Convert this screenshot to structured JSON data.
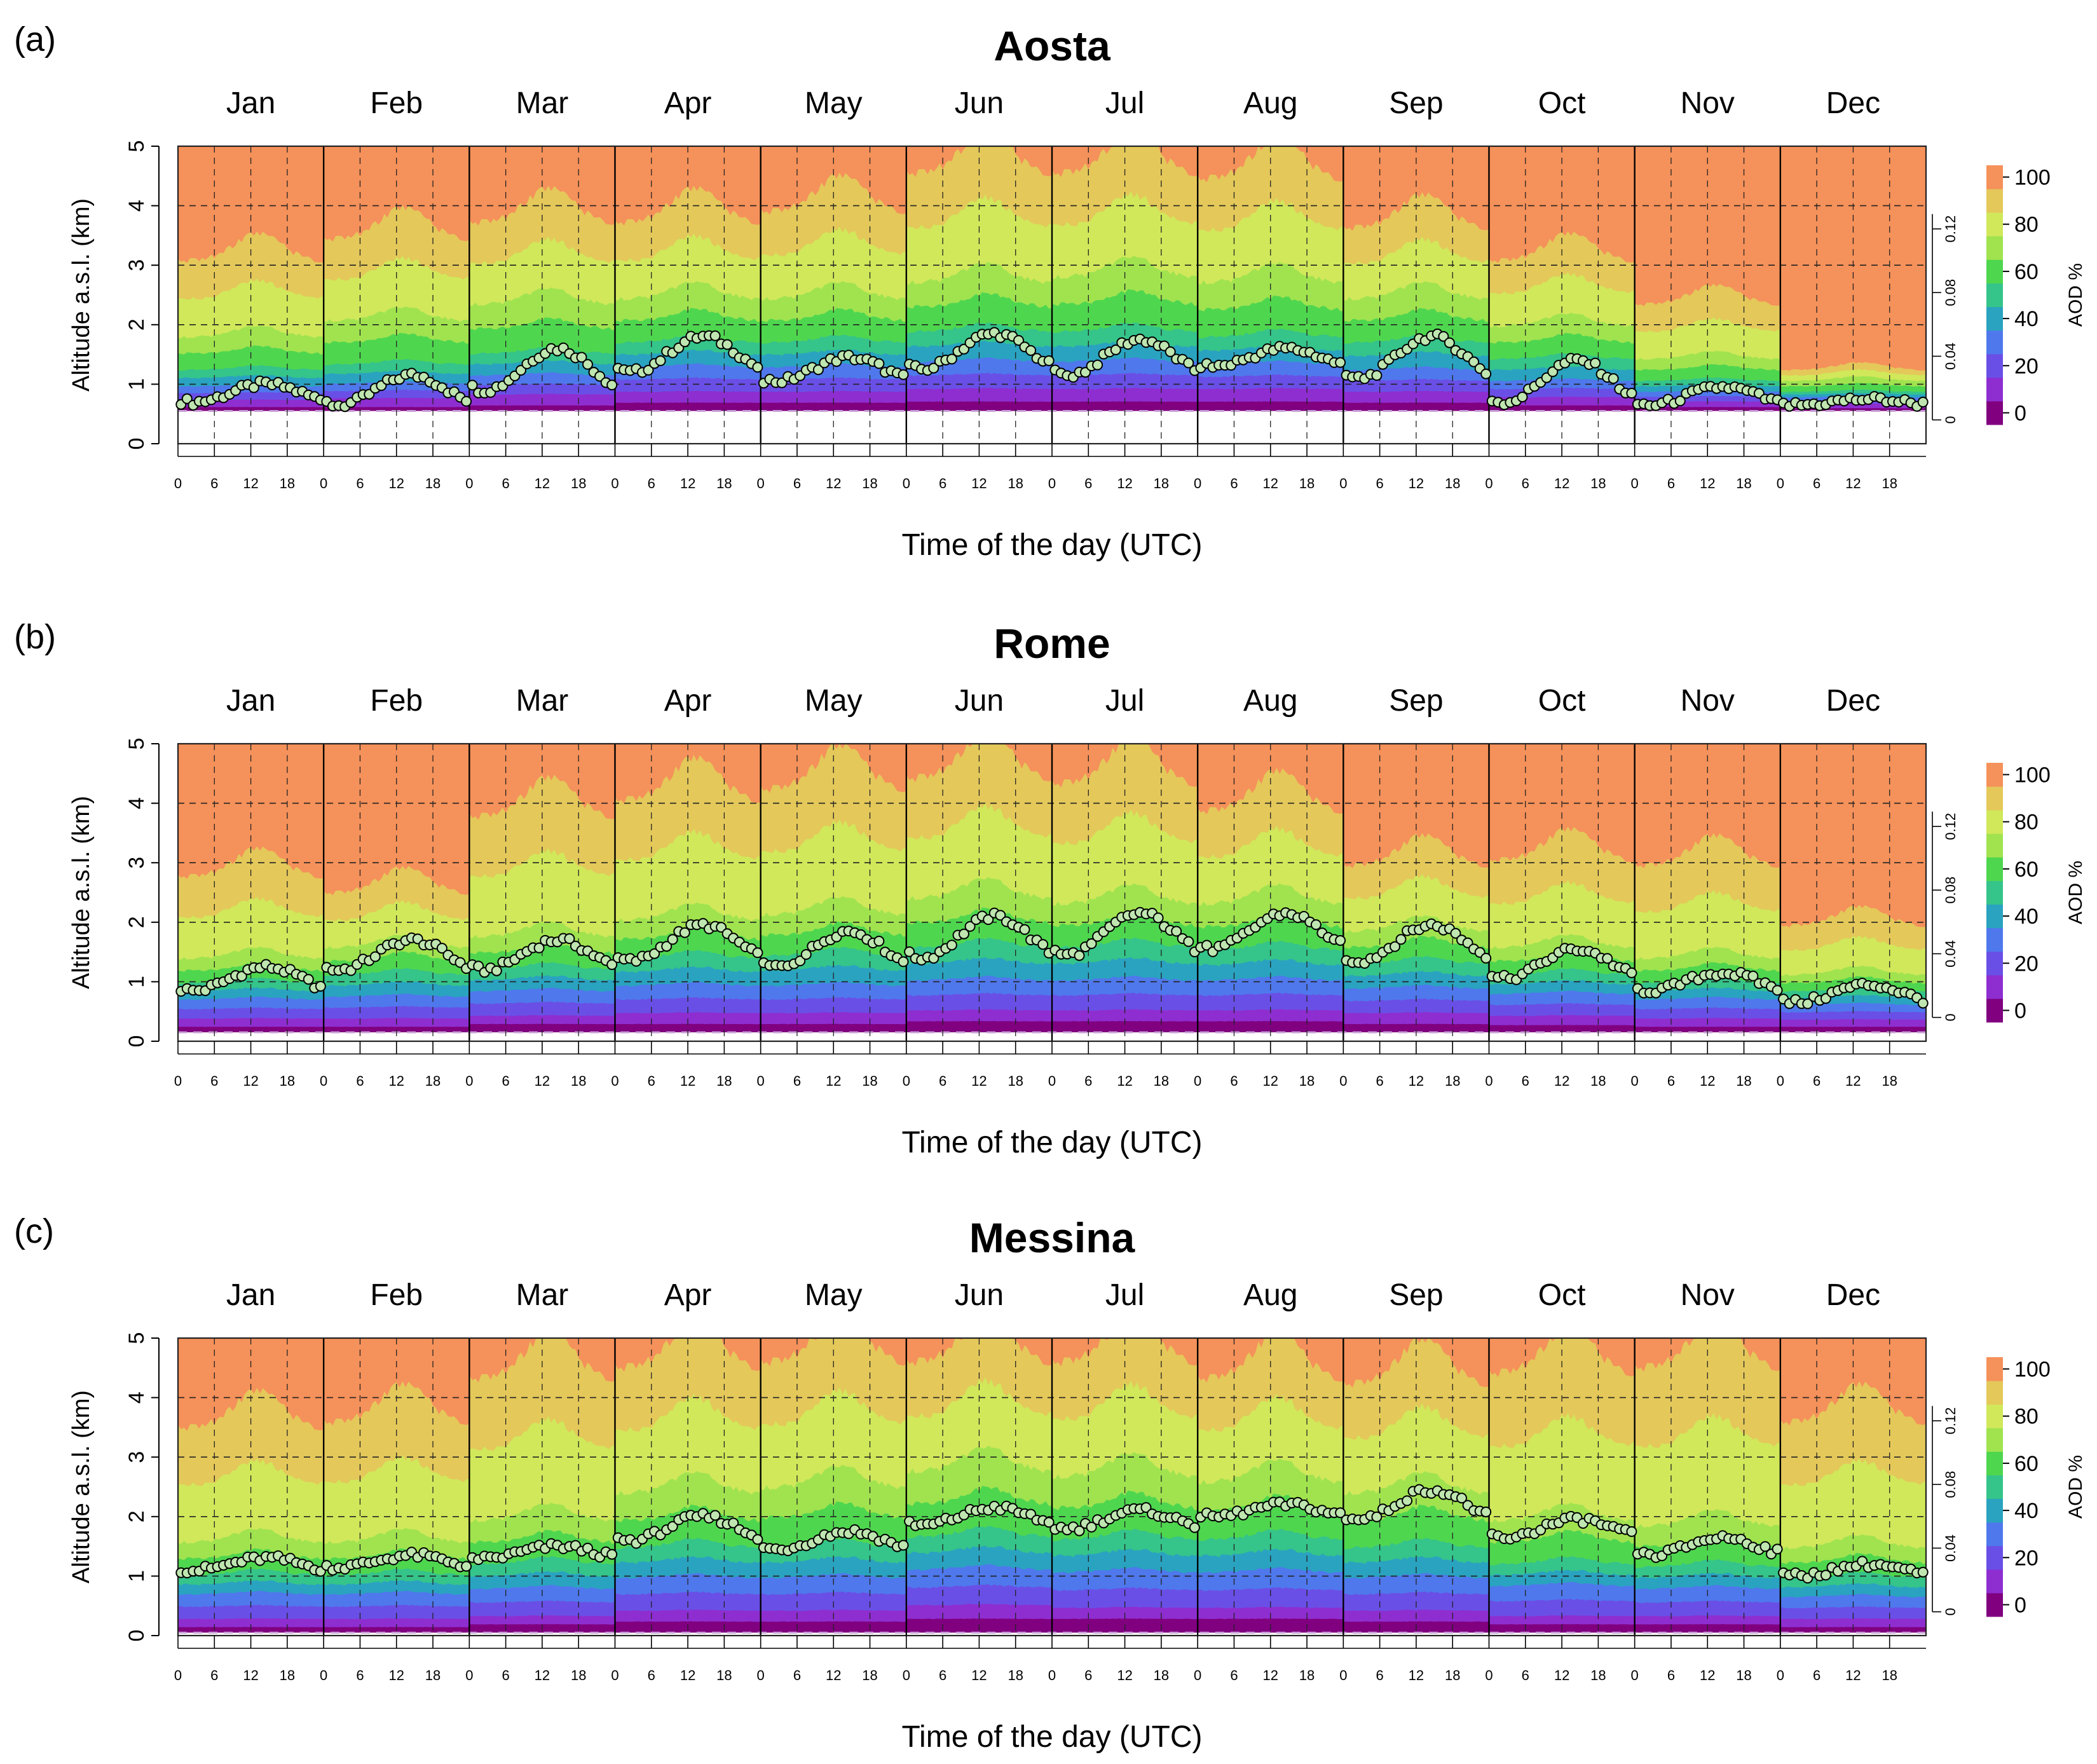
{
  "chart_data": [
    {
      "type": "heatmap",
      "panel_label": "(a)",
      "title": "Aosta",
      "xlabel": "Time of the day (UTC)",
      "ylabel": "Altitude a.s.l. (km)",
      "ylim": [
        0,
        5
      ],
      "yticks": [
        "0",
        "1",
        "2",
        "3",
        "4",
        "5"
      ],
      "months": [
        "Jan",
        "Feb",
        "Mar",
        "Apr",
        "May",
        "Jun",
        "Jul",
        "Aug",
        "Sep",
        "Oct",
        "Nov",
        "Dec"
      ],
      "hour_ticks": [
        "0",
        "6",
        "12",
        "18"
      ],
      "ground_km": 0.55,
      "colorbar": {
        "title": "AOD %",
        "levels": [
          0,
          10,
          20,
          30,
          40,
          50,
          60,
          70,
          80,
          90,
          100
        ],
        "ticks": [
          "0",
          "20",
          "40",
          "60",
          "80",
          "100"
        ],
        "aod_ticks": [
          "0",
          "0.04",
          "0.08",
          "0.12"
        ]
      },
      "monthly_aod_percent_profile": {
        "note": "altitude (km) of cumulative AOD% contour at 12 UTC per month",
        "Jan": {
          "p10": 0.62,
          "p20": 0.75,
          "p40": 1.0,
          "p60": 1.3,
          "p80": 1.9,
          "p100": 3.3
        },
        "Feb": {
          "p10": 0.62,
          "p20": 0.78,
          "p40": 1.05,
          "p60": 1.4,
          "p80": 2.2,
          "p100": 3.7
        },
        "Mar": {
          "p10": 0.65,
          "p20": 0.85,
          "p40": 1.2,
          "p60": 1.6,
          "p80": 2.5,
          "p100": 4.0
        },
        "Apr": {
          "p10": 0.7,
          "p20": 0.9,
          "p40": 1.35,
          "p60": 1.8,
          "p80": 2.6,
          "p100": 4.0
        },
        "May": {
          "p10": 0.7,
          "p20": 0.9,
          "p40": 1.35,
          "p60": 1.8,
          "p80": 2.6,
          "p100": 4.2
        },
        "Jun": {
          "p10": 0.72,
          "p20": 0.95,
          "p40": 1.45,
          "p60": 2.0,
          "p80": 2.9,
          "p100": 4.9
        },
        "Jul": {
          "p10": 0.72,
          "p20": 0.95,
          "p40": 1.45,
          "p60": 2.0,
          "p80": 3.0,
          "p100": 4.9
        },
        "Aug": {
          "p10": 0.72,
          "p20": 0.95,
          "p40": 1.4,
          "p60": 1.9,
          "p80": 2.9,
          "p100": 4.8
        },
        "Sep": {
          "p10": 0.7,
          "p20": 0.9,
          "p40": 1.3,
          "p60": 1.8,
          "p80": 2.6,
          "p100": 3.9
        },
        "Oct": {
          "p10": 0.65,
          "p20": 0.8,
          "p40": 1.1,
          "p60": 1.5,
          "p80": 2.1,
          "p100": 3.3
        },
        "Nov": {
          "p10": 0.62,
          "p20": 0.72,
          "p40": 0.9,
          "p60": 1.1,
          "p80": 1.5,
          "p100": 2.5
        },
        "Dec": {
          "p10": 0.6,
          "p20": 0.68,
          "p40": 0.8,
          "p60": 0.9,
          "p80": 1.1,
          "p100": 1.3
        }
      },
      "mlh_monthly_mean_km": {
        "Jan": 0.85,
        "Feb": 0.9,
        "Mar": 1.25,
        "Apr": 1.5,
        "May": 1.25,
        "Jun": 1.55,
        "Jul": 1.45,
        "Aug": 1.45,
        "Sep": 1.45,
        "Oct": 1.05,
        "Nov": 0.8,
        "Dec": 0.7
      },
      "mlh_diurnal_amplitude_km": {
        "Jan": 0.15,
        "Feb": 0.25,
        "Mar": 0.35,
        "Apr": 0.3,
        "May": 0.2,
        "Jun": 0.3,
        "Jul": 0.3,
        "Aug": 0.15,
        "Sep": 0.35,
        "Oct": 0.35,
        "Nov": 0.15,
        "Dec": 0.05
      }
    },
    {
      "type": "heatmap",
      "panel_label": "(b)",
      "title": "Rome",
      "xlabel": "Time of the day (UTC)",
      "ylabel": "Altitude a.s.l. (km)",
      "ylim": [
        0,
        5
      ],
      "yticks": [
        "0",
        "1",
        "2",
        "3",
        "4",
        "5"
      ],
      "months": [
        "Jan",
        "Feb",
        "Mar",
        "Apr",
        "May",
        "Jun",
        "Jul",
        "Aug",
        "Sep",
        "Oct",
        "Nov",
        "Dec"
      ],
      "hour_ticks": [
        "0",
        "6",
        "12",
        "18"
      ],
      "ground_km": 0.15,
      "colorbar": {
        "title": "AOD %",
        "levels": [
          0,
          10,
          20,
          30,
          40,
          50,
          60,
          70,
          80,
          90,
          100
        ],
        "ticks": [
          "0",
          "20",
          "40",
          "60",
          "80",
          "100"
        ],
        "aod_ticks": [
          "0",
          "0.04",
          "0.08",
          "0.12"
        ]
      },
      "monthly_aod_percent_profile": {
        "Jan": {
          "p10": 0.25,
          "p20": 0.4,
          "p40": 0.75,
          "p60": 1.05,
          "p80": 1.5,
          "p100": 3.0
        },
        "Feb": {
          "p10": 0.25,
          "p20": 0.4,
          "p40": 0.8,
          "p60": 1.2,
          "p80": 1.7,
          "p100": 2.7
        },
        "Mar": {
          "p10": 0.3,
          "p20": 0.45,
          "p40": 0.9,
          "p60": 1.3,
          "p80": 1.9,
          "p100": 4.1
        },
        "Apr": {
          "p10": 0.3,
          "p20": 0.5,
          "p40": 1.0,
          "p60": 1.5,
          "p80": 2.2,
          "p100": 4.4
        },
        "May": {
          "p10": 0.3,
          "p20": 0.5,
          "p40": 1.0,
          "p60": 1.55,
          "p80": 2.3,
          "p100": 4.6
        },
        "Jun": {
          "p10": 0.35,
          "p20": 0.55,
          "p40": 1.1,
          "p60": 1.7,
          "p80": 2.6,
          "p100": 4.8
        },
        "Jul": {
          "p10": 0.35,
          "p20": 0.55,
          "p40": 1.1,
          "p60": 1.7,
          "p80": 2.5,
          "p100": 4.7
        },
        "Aug": {
          "p10": 0.35,
          "p20": 0.55,
          "p40": 1.1,
          "p60": 1.65,
          "p80": 2.5,
          "p100": 4.2
        },
        "Sep": {
          "p10": 0.3,
          "p20": 0.5,
          "p40": 0.95,
          "p60": 1.4,
          "p80": 2.0,
          "p100": 3.2
        },
        "Oct": {
          "p10": 0.28,
          "p20": 0.45,
          "p40": 0.85,
          "p60": 1.2,
          "p80": 1.7,
          "p100": 3.3
        },
        "Nov": {
          "p10": 0.25,
          "p20": 0.4,
          "p40": 0.75,
          "p60": 1.05,
          "p80": 1.5,
          "p100": 3.2
        },
        "Dec": {
          "p10": 0.25,
          "p20": 0.38,
          "p40": 0.65,
          "p60": 0.9,
          "p80": 1.2,
          "p100": 2.1
        }
      },
      "mlh_monthly_mean_km": {
        "Jan": 1.05,
        "Feb": 1.45,
        "Mar": 1.45,
        "Apr": 1.65,
        "May": 1.55,
        "Jun": 1.75,
        "Jul": 1.8,
        "Aug": 1.85,
        "Sep": 1.65,
        "Oct": 1.3,
        "Nov": 1.0,
        "Dec": 0.8
      },
      "mlh_diurnal_amplitude_km": {
        "Jan": 0.2,
        "Feb": 0.25,
        "Mar": 0.25,
        "Apr": 0.3,
        "May": 0.3,
        "Jun": 0.35,
        "Jul": 0.35,
        "Aug": 0.3,
        "Sep": 0.3,
        "Oct": 0.25,
        "Nov": 0.15,
        "Dec": 0.15
      }
    },
    {
      "type": "heatmap",
      "panel_label": "(c)",
      "title": "Messina",
      "xlabel": "Time of the day (UTC)",
      "ylabel": "Altitude a.s.l. (km)",
      "ylim": [
        0,
        5
      ],
      "yticks": [
        "0",
        "1",
        "2",
        "3",
        "4",
        "5"
      ],
      "months": [
        "Jan",
        "Feb",
        "Mar",
        "Apr",
        "May",
        "Jun",
        "Jul",
        "Aug",
        "Sep",
        "Oct",
        "Nov",
        "Dec"
      ],
      "hour_ticks": [
        "0",
        "6",
        "12",
        "18"
      ],
      "ground_km": 0.05,
      "colorbar": {
        "title": "AOD %",
        "levels": [
          0,
          10,
          20,
          30,
          40,
          50,
          60,
          70,
          80,
          90,
          100
        ],
        "ticks": [
          "0",
          "20",
          "40",
          "60",
          "80",
          "100"
        ],
        "aod_ticks": [
          "0",
          "0.04",
          "0.08",
          "0.12"
        ]
      },
      "monthly_aod_percent_profile": {
        "Jan": {
          "p10": 0.15,
          "p20": 0.3,
          "p40": 0.75,
          "p60": 1.1,
          "p80": 1.7,
          "p100": 3.8
        },
        "Feb": {
          "p10": 0.15,
          "p20": 0.3,
          "p40": 0.75,
          "p60": 1.1,
          "p80": 1.7,
          "p100": 3.9
        },
        "Mar": {
          "p10": 0.2,
          "p20": 0.35,
          "p40": 0.85,
          "p60": 1.3,
          "p80": 2.1,
          "p100": 4.7
        },
        "Apr": {
          "p10": 0.25,
          "p20": 0.45,
          "p40": 1.05,
          "p60": 1.6,
          "p80": 2.6,
          "p100": 4.9
        },
        "May": {
          "p10": 0.25,
          "p20": 0.45,
          "p40": 1.05,
          "p60": 1.6,
          "p80": 2.7,
          "p100": 5.0
        },
        "Jun": {
          "p10": 0.3,
          "p20": 0.55,
          "p40": 1.2,
          "p60": 1.8,
          "p80": 3.0,
          "p100": 5.0
        },
        "Jul": {
          "p10": 0.3,
          "p20": 0.5,
          "p40": 1.15,
          "p60": 1.75,
          "p80": 2.9,
          "p100": 5.0
        },
        "Aug": {
          "p10": 0.3,
          "p20": 0.5,
          "p40": 1.15,
          "p60": 1.75,
          "p80": 2.8,
          "p100": 4.7
        },
        "Sep": {
          "p10": 0.25,
          "p20": 0.45,
          "p40": 1.05,
          "p60": 1.6,
          "p80": 2.6,
          "p100": 4.6
        },
        "Oct": {
          "p10": 0.2,
          "p20": 0.35,
          "p40": 0.9,
          "p60": 1.3,
          "p80": 2.1,
          "p100": 4.8
        },
        "Nov": {
          "p10": 0.2,
          "p20": 0.35,
          "p40": 0.85,
          "p60": 1.25,
          "p80": 2.0,
          "p100": 4.9
        },
        "Dec": {
          "p10": 0.15,
          "p20": 0.3,
          "p40": 0.7,
          "p60": 1.05,
          "p80": 1.6,
          "p100": 3.9
        }
      },
      "mlh_monthly_mean_km": {
        "Jan": 1.2,
        "Feb": 1.25,
        "Mar": 1.4,
        "Apr": 1.8,
        "May": 1.6,
        "Jun": 2.0,
        "Jul": 1.95,
        "Aug": 2.1,
        "Sep": 2.2,
        "Oct": 1.8,
        "Nov": 1.5,
        "Dec": 1.1
      },
      "mlh_diurnal_amplitude_km": {
        "Jan": 0.1,
        "Feb": 0.1,
        "Mar": 0.1,
        "Apr": 0.2,
        "May": 0.15,
        "Jun": 0.15,
        "Jul": 0.15,
        "Aug": 0.1,
        "Sep": 0.25,
        "Oct": 0.15,
        "Nov": 0.15,
        "Dec": 0.1
      }
    }
  ],
  "colors": {
    "levels": [
      "#800080",
      "#8e2ed0",
      "#6a4fe6",
      "#4f78ec",
      "#2aa3c0",
      "#35c48a",
      "#4fd64f",
      "#a0e34f",
      "#d0e85a",
      "#e4c85a",
      "#f5915a"
    ],
    "mlh_marker_edge": "#000000",
    "mlh_marker_fill": "#bfe6b0"
  }
}
